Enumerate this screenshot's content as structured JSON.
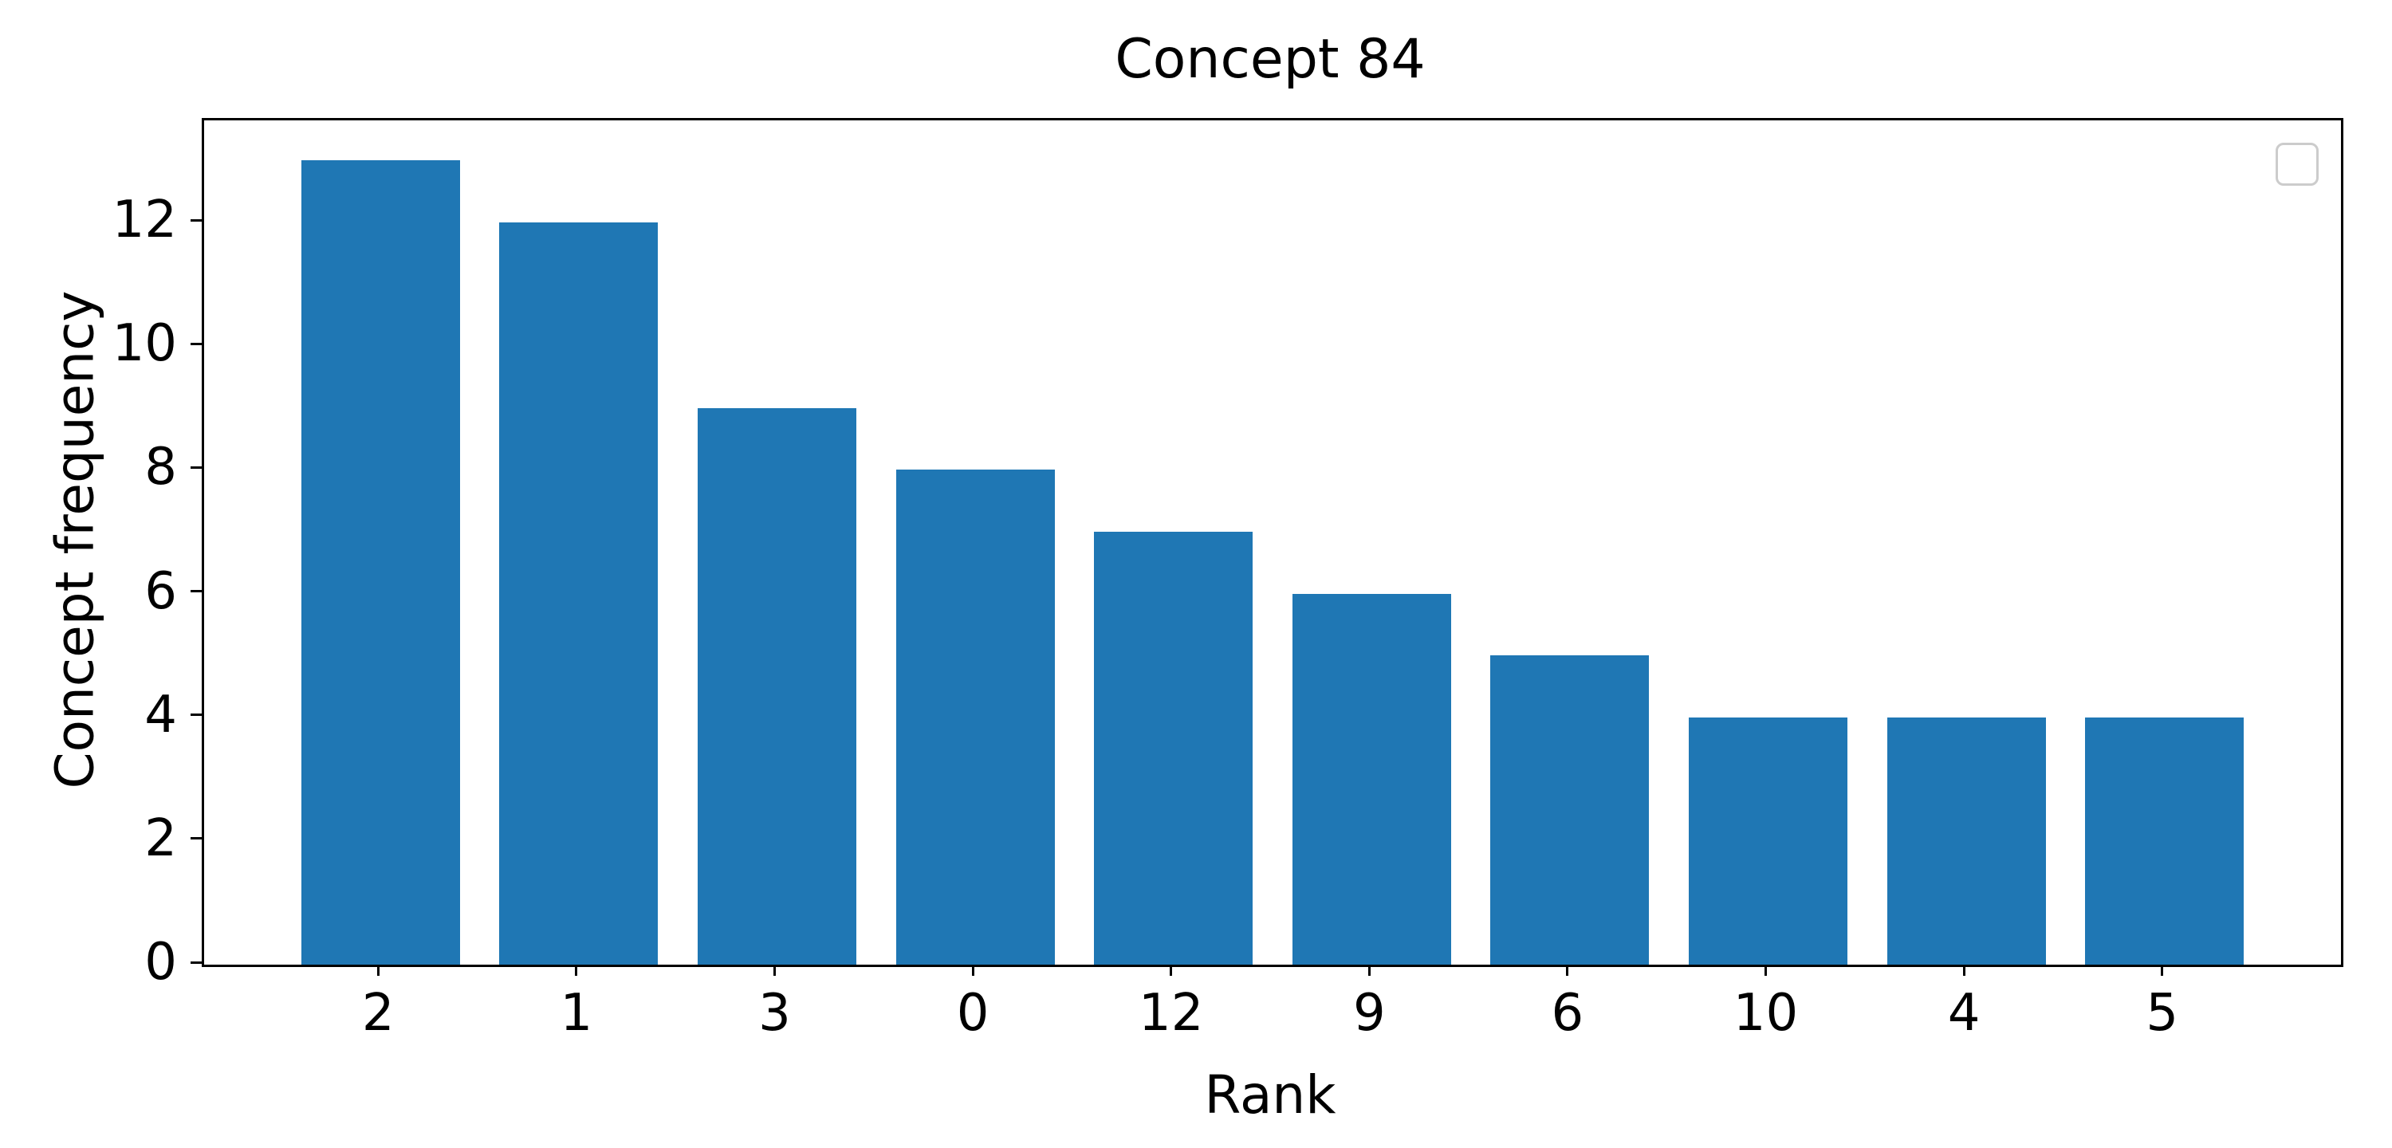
{
  "chart_data": {
    "type": "bar",
    "title": "Concept 84",
    "xlabel": "Rank",
    "ylabel": "Concept frequency",
    "categories": [
      "2",
      "1",
      "3",
      "0",
      "12",
      "9",
      "6",
      "10",
      "4",
      "5"
    ],
    "values": [
      13,
      12,
      9,
      8,
      7,
      6,
      5,
      4,
      4,
      4
    ],
    "yticks": [
      0,
      2,
      4,
      6,
      8,
      10,
      12
    ],
    "ylim": [
      0,
      13.65
    ],
    "xlim": [
      -0.89,
      9.89
    ],
    "bar_width_units": 0.8,
    "bar_color": "#1f77b4",
    "axis_color": "#000000",
    "legend_border_color": "#cccccc",
    "grid": false,
    "legend": {
      "visible": true,
      "entries": [],
      "position": "upper right"
    }
  }
}
